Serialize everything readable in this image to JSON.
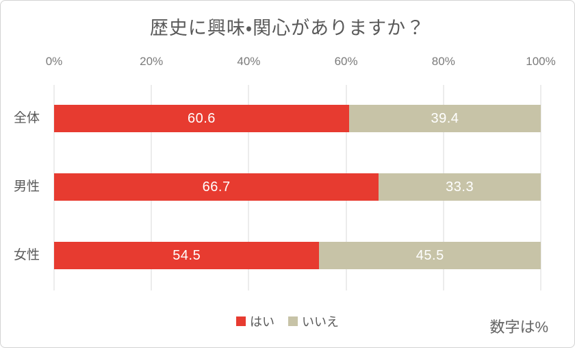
{
  "chart_data": {
    "type": "bar",
    "orientation": "horizontal",
    "stacked": true,
    "title": "歴史に興味・関心がありますか？",
    "categories": [
      "全体",
      "男性",
      "女性"
    ],
    "series": [
      {
        "name": "はい",
        "color": "#e73b30",
        "values": [
          60.6,
          66.7,
          54.5
        ]
      },
      {
        "name": "いいえ",
        "color": "#c7c3a7",
        "values": [
          39.4,
          33.3,
          45.5
        ]
      }
    ],
    "x_axis": {
      "ticks": [
        "0%",
        "20%",
        "40%",
        "60%",
        "80%",
        "100%"
      ],
      "range": [
        0,
        100
      ]
    },
    "grid": true,
    "legend_position": "bottom",
    "note": "数字は%"
  },
  "colors": {
    "series_yes": "#e73b30",
    "series_no": "#c7c3a7",
    "gridline": "#d9d9d9",
    "title_text": "#595959",
    "axis_text": "#7a7a7a",
    "category_text": "#595959",
    "value_text": "#ffffff",
    "note_text": "#666666",
    "frame_border": "#d2d2d2"
  }
}
